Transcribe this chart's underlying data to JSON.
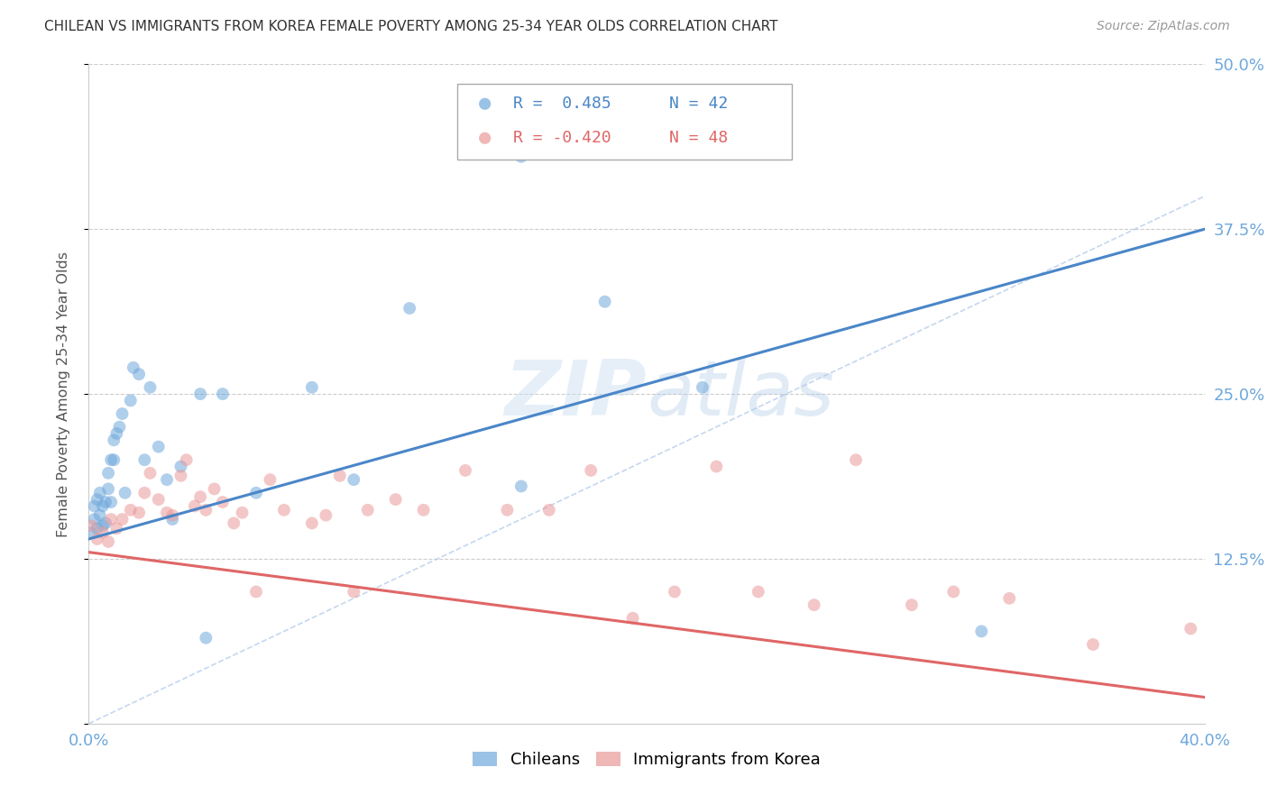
{
  "title": "CHILEAN VS IMMIGRANTS FROM KOREA FEMALE POVERTY AMONG 25-34 YEAR OLDS CORRELATION CHART",
  "source": "Source: ZipAtlas.com",
  "ylabel": "Female Poverty Among 25-34 Year Olds",
  "xlim": [
    0.0,
    0.4
  ],
  "ylim": [
    0.0,
    0.5
  ],
  "yticks": [
    0.0,
    0.125,
    0.25,
    0.375,
    0.5
  ],
  "ytick_labels": [
    "",
    "12.5%",
    "25.0%",
    "37.5%",
    "50.0%"
  ],
  "xtick_labels": [
    "0.0%",
    "40.0%"
  ],
  "xtick_positions": [
    0.0,
    0.4
  ],
  "blue_color": "#6fa8dc",
  "pink_color": "#ea9999",
  "trend_blue": "#4a86c8",
  "trend_pink": "#e06666",
  "diag_color": "#aec6e8",
  "legend_r1": "R =  0.485",
  "legend_n1": "N = 42",
  "legend_r2": "R = -0.420",
  "legend_n2": "N = 48",
  "blue_trend_x0": 0.0,
  "blue_trend_y0": 0.14,
  "blue_trend_x1": 0.4,
  "blue_trend_y1": 0.375,
  "pink_trend_x0": 0.0,
  "pink_trend_y0": 0.13,
  "pink_trend_x1": 0.4,
  "pink_trend_y1": 0.02,
  "blue_points_x": [
    0.001,
    0.002,
    0.002,
    0.003,
    0.003,
    0.004,
    0.004,
    0.005,
    0.005,
    0.006,
    0.006,
    0.007,
    0.007,
    0.008,
    0.008,
    0.009,
    0.009,
    0.01,
    0.011,
    0.012,
    0.013,
    0.015,
    0.016,
    0.018,
    0.02,
    0.022,
    0.025,
    0.028,
    0.03,
    0.033,
    0.04,
    0.042,
    0.048,
    0.06,
    0.08,
    0.095,
    0.115,
    0.155,
    0.185,
    0.22,
    0.155,
    0.32
  ],
  "blue_points_y": [
    0.145,
    0.155,
    0.165,
    0.148,
    0.17,
    0.158,
    0.175,
    0.15,
    0.165,
    0.152,
    0.168,
    0.178,
    0.19,
    0.168,
    0.2,
    0.2,
    0.215,
    0.22,
    0.225,
    0.235,
    0.175,
    0.245,
    0.27,
    0.265,
    0.2,
    0.255,
    0.21,
    0.185,
    0.155,
    0.195,
    0.25,
    0.065,
    0.25,
    0.175,
    0.255,
    0.185,
    0.315,
    0.43,
    0.32,
    0.255,
    0.18,
    0.07
  ],
  "pink_points_x": [
    0.001,
    0.003,
    0.005,
    0.007,
    0.008,
    0.01,
    0.012,
    0.015,
    0.018,
    0.02,
    0.022,
    0.025,
    0.028,
    0.03,
    0.033,
    0.035,
    0.038,
    0.04,
    0.042,
    0.045,
    0.048,
    0.052,
    0.055,
    0.06,
    0.065,
    0.07,
    0.08,
    0.085,
    0.09,
    0.095,
    0.1,
    0.11,
    0.12,
    0.135,
    0.15,
    0.165,
    0.18,
    0.195,
    0.21,
    0.225,
    0.24,
    0.26,
    0.275,
    0.295,
    0.31,
    0.33,
    0.36,
    0.395
  ],
  "pink_points_y": [
    0.15,
    0.14,
    0.145,
    0.138,
    0.155,
    0.148,
    0.155,
    0.162,
    0.16,
    0.175,
    0.19,
    0.17,
    0.16,
    0.158,
    0.188,
    0.2,
    0.165,
    0.172,
    0.162,
    0.178,
    0.168,
    0.152,
    0.16,
    0.1,
    0.185,
    0.162,
    0.152,
    0.158,
    0.188,
    0.1,
    0.162,
    0.17,
    0.162,
    0.192,
    0.162,
    0.162,
    0.192,
    0.08,
    0.1,
    0.195,
    0.1,
    0.09,
    0.2,
    0.09,
    0.1,
    0.095,
    0.06,
    0.072
  ],
  "axis_tick_color": "#6fa8dc",
  "grid_color": "#cccccc",
  "watermark_zip": "ZIP",
  "watermark_atlas": "atlas",
  "background_color": "#ffffff"
}
